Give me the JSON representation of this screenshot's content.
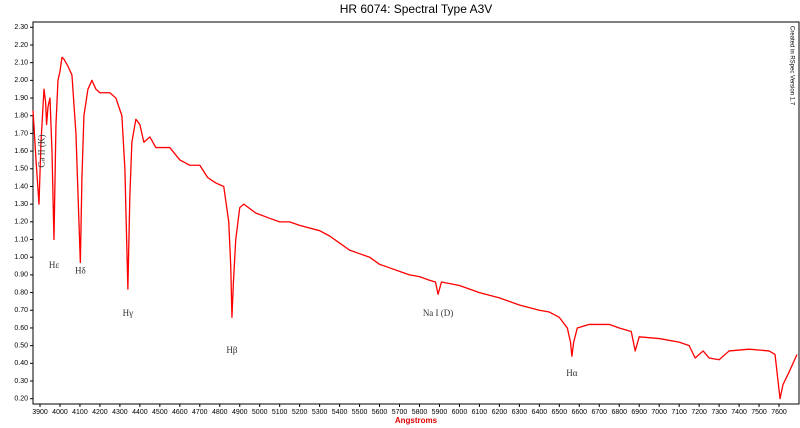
{
  "chart_data": {
    "type": "line",
    "title": "HR 6074: Spectral Type A3V",
    "x_label": "Angstroms",
    "side_note": "Created in RSpec Version 1.7",
    "xlim": [
      3865,
      7700
    ],
    "ylim": [
      0.17,
      2.33
    ],
    "xticks": [
      3900,
      4000,
      4100,
      4200,
      4300,
      4400,
      4500,
      4600,
      4700,
      4800,
      4900,
      5000,
      5100,
      5200,
      5300,
      5400,
      5500,
      5600,
      5700,
      5800,
      5900,
      6000,
      6100,
      6200,
      6300,
      6400,
      6500,
      6600,
      6700,
      6800,
      6900,
      7000,
      7100,
      7200,
      7300,
      7400,
      7500,
      7600
    ],
    "yticks": [
      {
        "value": 0.2,
        "label": "0.20"
      },
      {
        "value": 0.3,
        "label": "0.30"
      },
      {
        "value": 0.4,
        "label": "0.40"
      },
      {
        "value": 0.5,
        "label": "0.50"
      },
      {
        "value": 0.6,
        "label": "0.60"
      },
      {
        "value": 0.7,
        "label": "0.70"
      },
      {
        "value": 0.8,
        "label": "0.80"
      },
      {
        "value": 0.9,
        "label": "0.90"
      },
      {
        "value": 1.0,
        "label": "1.00"
      },
      {
        "value": 1.1,
        "label": "1.10"
      },
      {
        "value": 1.2,
        "label": "1.20"
      },
      {
        "value": 1.3,
        "label": "1.30"
      },
      {
        "value": 1.4,
        "label": "1.40"
      },
      {
        "value": 1.5,
        "label": "1.50"
      },
      {
        "value": 1.6,
        "label": "1.60"
      },
      {
        "value": 1.7,
        "label": "1.70"
      },
      {
        "value": 1.8,
        "label": "1.80"
      },
      {
        "value": 1.9,
        "label": "1.90"
      },
      {
        "value": 2.0,
        "label": "2.00"
      },
      {
        "value": 2.1,
        "label": "2.10"
      },
      {
        "value": 2.2,
        "label": "2.20"
      },
      {
        "value": 2.3,
        "label": "2.30"
      }
    ],
    "series": [
      {
        "color": "#ff0000",
        "x": [
          3865,
          3880,
          3895,
          3905,
          3920,
          3928,
          3933,
          3940,
          3950,
          3960,
          3970,
          3980,
          3990,
          4000,
          4010,
          4020,
          4040,
          4060,
          4080,
          4095,
          4102,
          4110,
          4120,
          4140,
          4160,
          4180,
          4200,
          4250,
          4280,
          4310,
          4325,
          4340,
          4350,
          4360,
          4380,
          4400,
          4420,
          4450,
          4480,
          4550,
          4600,
          4650,
          4700,
          4740,
          4780,
          4820,
          4845,
          4855,
          4861,
          4868,
          4880,
          4900,
          4920,
          4980,
          5050,
          5100,
          5150,
          5200,
          5300,
          5350,
          5400,
          5450,
          5500,
          5550,
          5600,
          5650,
          5700,
          5750,
          5800,
          5850,
          5880,
          5893,
          5910,
          6000,
          6100,
          6200,
          6300,
          6400,
          6450,
          6500,
          6540,
          6556,
          6563,
          6572,
          6590,
          6650,
          6750,
          6800,
          6860,
          6880,
          6900,
          7000,
          7100,
          7150,
          7180,
          7220,
          7250,
          7300,
          7350,
          7450,
          7550,
          7580,
          7605,
          7620,
          7650,
          7690
        ],
        "values": [
          1.83,
          1.55,
          1.3,
          1.65,
          1.95,
          1.88,
          1.75,
          1.85,
          1.9,
          1.6,
          1.1,
          1.75,
          2.0,
          2.05,
          2.13,
          2.12,
          2.08,
          2.03,
          1.7,
          1.2,
          0.97,
          1.45,
          1.8,
          1.95,
          2.0,
          1.95,
          1.93,
          1.93,
          1.9,
          1.8,
          1.5,
          0.82,
          1.35,
          1.65,
          1.78,
          1.75,
          1.65,
          1.68,
          1.62,
          1.62,
          1.55,
          1.52,
          1.52,
          1.45,
          1.42,
          1.4,
          1.2,
          0.95,
          0.66,
          0.85,
          1.1,
          1.28,
          1.3,
          1.25,
          1.22,
          1.2,
          1.2,
          1.18,
          1.15,
          1.12,
          1.08,
          1.04,
          1.02,
          1.0,
          0.96,
          0.94,
          0.92,
          0.9,
          0.89,
          0.87,
          0.86,
          0.79,
          0.86,
          0.84,
          0.8,
          0.77,
          0.73,
          0.7,
          0.69,
          0.66,
          0.6,
          0.52,
          0.44,
          0.52,
          0.6,
          0.62,
          0.62,
          0.6,
          0.58,
          0.47,
          0.55,
          0.54,
          0.52,
          0.5,
          0.43,
          0.47,
          0.43,
          0.42,
          0.47,
          0.48,
          0.47,
          0.45,
          0.2,
          0.28,
          0.35,
          0.45
        ]
      }
    ],
    "annotations": [
      {
        "text": "Ca II (K)",
        "x": 3933,
        "y": 1.6,
        "vertical": true
      },
      {
        "text": "Hε",
        "x": 3970,
        "y": 0.95
      },
      {
        "text": "Hδ",
        "x": 4102,
        "y": 0.92
      },
      {
        "text": "Hγ",
        "x": 4340,
        "y": 0.68
      },
      {
        "text": "Hβ",
        "x": 4861,
        "y": 0.47
      },
      {
        "text": "Na I (D)",
        "x": 5893,
        "y": 0.68
      },
      {
        "text": "Hα",
        "x": 6563,
        "y": 0.34
      }
    ]
  }
}
